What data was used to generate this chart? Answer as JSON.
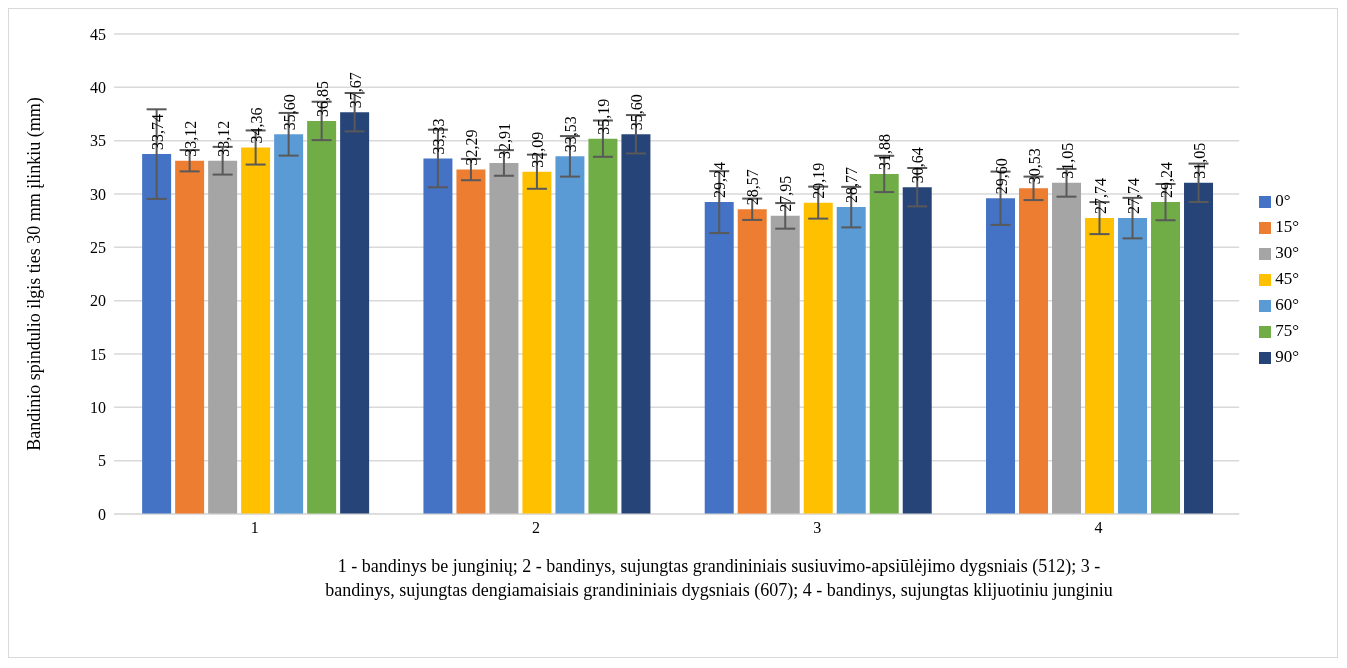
{
  "chart_data": {
    "type": "bar",
    "categories": [
      "1",
      "2",
      "3",
      "4"
    ],
    "ylabel": "Bandinio spindulio ilgis ties 30 mm įlinkiu (mm)",
    "xlabel": "1 - bandinys  be junginių; 2 - bandinys,  sujungtas grandininiais  susiuvimo-apsiūlėjimo dygsniais  (512); 3 - bandinys,  sujungtas dengiamaisiais grandininiais  dygsniais  (607); 4 - bandinys,  sujungtas klijuotiniu junginiu",
    "ylim": [
      0,
      45
    ],
    "yticks": [
      0,
      5,
      10,
      15,
      20,
      25,
      30,
      35,
      40,
      45
    ],
    "grid": "y",
    "legend": "right",
    "series": [
      {
        "name": "0°",
        "color": "#4472c4",
        "values": [
          33.74,
          33.33,
          29.24,
          29.6
        ],
        "errors": [
          4.2,
          2.7,
          2.9,
          2.5
        ],
        "value_labels": [
          "33,74",
          "33,33",
          "29,24",
          "29,60"
        ]
      },
      {
        "name": "15°",
        "color": "#ed7d31",
        "values": [
          33.12,
          32.29,
          28.57,
          30.53
        ],
        "errors": [
          1.0,
          1.0,
          1.0,
          1.1
        ],
        "value_labels": [
          "33,12",
          "32,29",
          "28,57",
          "30,53"
        ]
      },
      {
        "name": "30°",
        "color": "#a5a5a5",
        "values": [
          33.12,
          32.91,
          27.95,
          31.05
        ],
        "errors": [
          1.3,
          1.2,
          1.2,
          1.3
        ],
        "value_labels": [
          "33,12",
          "32,91",
          "27,95",
          "31,05"
        ]
      },
      {
        "name": "45°",
        "color": "#ffc000",
        "values": [
          34.36,
          32.09,
          29.19,
          27.74
        ],
        "errors": [
          1.6,
          1.6,
          1.5,
          1.5
        ],
        "value_labels": [
          "34,36",
          "32,09",
          "29,19",
          "27,74"
        ]
      },
      {
        "name": "60°",
        "color": "#5b9bd5",
        "values": [
          35.6,
          33.53,
          28.77,
          27.74
        ],
        "errors": [
          2.0,
          1.9,
          1.9,
          1.9
        ],
        "value_labels": [
          "35,60",
          "33,53",
          "28,77",
          "27,74"
        ]
      },
      {
        "name": "75°",
        "color": "#70ad47",
        "values": [
          36.85,
          35.19,
          31.88,
          29.24
        ],
        "errors": [
          1.8,
          1.7,
          1.7,
          1.7
        ],
        "value_labels": [
          "36,85",
          "35,19",
          "31,88",
          "29,24"
        ]
      },
      {
        "name": "90°",
        "color": "#264478",
        "values": [
          37.67,
          35.6,
          30.64,
          31.05
        ],
        "errors": [
          1.8,
          1.8,
          1.8,
          1.8
        ],
        "value_labels": [
          "37,67",
          "35,60",
          "30,64",
          "31,05"
        ]
      }
    ]
  }
}
